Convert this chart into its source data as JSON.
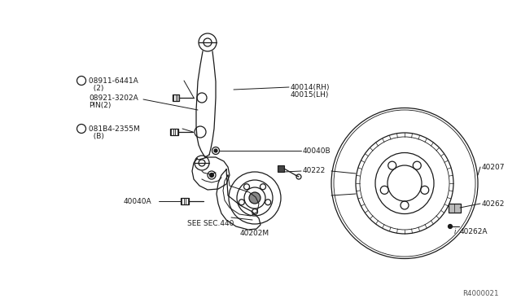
{
  "bg_color": "#ffffff",
  "diagram_color": "#1a1a1a",
  "line_color": "#1a1a1a",
  "text_color": "#1a1a1a",
  "fig_width": 6.4,
  "fig_height": 3.72,
  "dpi": 100,
  "watermark": "R4000021",
  "labels": {
    "N_label": "N 08911-6441A",
    "N_sub": "  (2)",
    "pin_label": "  08921-3202A",
    "pin_sub": "  PIN(2)",
    "B_label": "B 081B4-2355M",
    "B_sub": "  (B)",
    "part_40014": "40014(RH)",
    "part_40015": "40015(LH)",
    "part_40040B": "40040B",
    "part_40222": "40222",
    "part_40040A": "40040A",
    "see_sec": "SEE SEC.440",
    "part_40202M": "40202M",
    "part_40207": "40207",
    "part_40262": "40262",
    "part_40262A": "40262A"
  }
}
